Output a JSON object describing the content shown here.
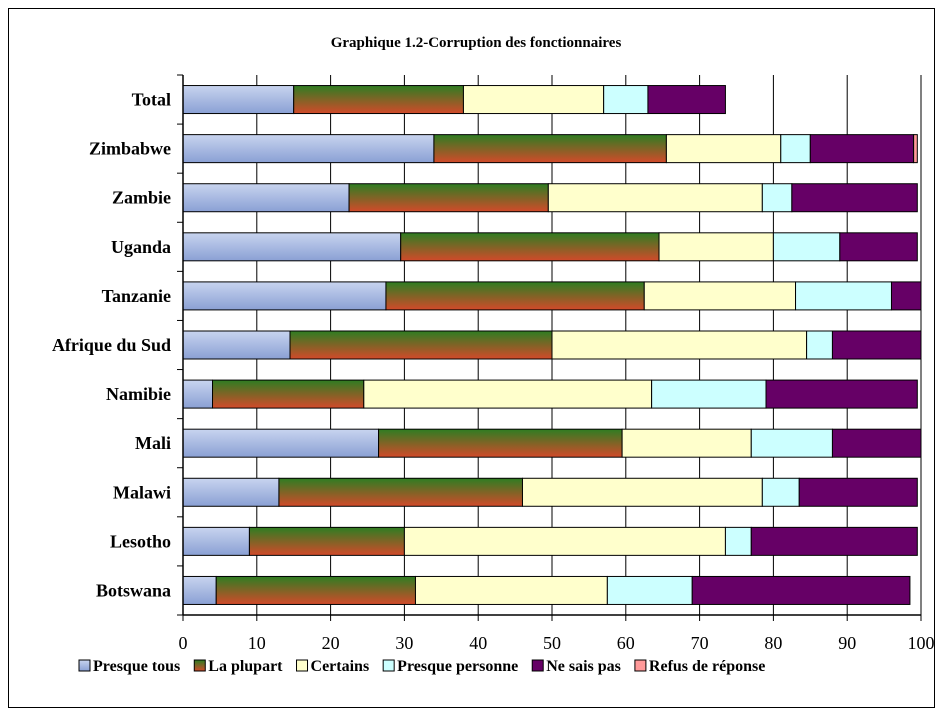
{
  "chart_data": {
    "type": "bar",
    "orientation": "horizontal",
    "stacked": true,
    "title": "Graphique 1.2-Corruption des fonctionnaires",
    "xlabel": "",
    "ylabel": "",
    "xlim": [
      0,
      100
    ],
    "x_ticks": [
      "0",
      "10",
      "20",
      "30",
      "40",
      "50",
      "60",
      "70",
      "80",
      "90",
      "100"
    ],
    "grid": "vertical",
    "legend_position": "bottom",
    "categories": [
      "Total",
      "Zimbabwe",
      "Zambie",
      "Uganda",
      "Tanzanie",
      "Afrique du Sud",
      "Namibie",
      "Mali",
      "Malawi",
      "Lesotho",
      "Botswana"
    ],
    "series": [
      {
        "name": "Presque tous",
        "color": "#c8d4ef",
        "color_dark": "#8aa0d4",
        "values": [
          15,
          34,
          22.5,
          29.5,
          27.5,
          14.5,
          4,
          26.5,
          13,
          9,
          4.5
        ]
      },
      {
        "name": "La plupart",
        "color": "#2e7d22",
        "color_dark": "#d24a2a",
        "values": [
          23,
          31.5,
          27,
          35,
          35,
          35.5,
          20.5,
          33,
          33,
          21,
          27
        ]
      },
      {
        "name": "Certains",
        "color": "#ffffcc",
        "color_dark": "#ffffcc",
        "values": [
          19,
          15.5,
          29,
          15.5,
          20.5,
          34.5,
          39,
          17.5,
          32.5,
          43.5,
          26
        ]
      },
      {
        "name": "Presque personne",
        "color": "#ccffff",
        "color_dark": "#ccffff",
        "values": [
          6,
          4,
          4,
          9,
          13,
          3.5,
          15.5,
          11,
          5,
          3.5,
          11.5
        ]
      },
      {
        "name": "Ne sais pas",
        "color": "#660066",
        "color_dark": "#660066",
        "values": [
          10.5,
          14,
          17,
          10.5,
          4,
          12,
          20.5,
          12,
          16,
          22.5,
          29.5
        ]
      },
      {
        "name": "Refus de réponse",
        "color": "#ff9999",
        "color_dark": "#ff9999",
        "values": [
          0,
          0.5,
          0,
          0,
          0,
          0,
          0,
          0,
          0,
          0,
          0
        ]
      }
    ]
  }
}
